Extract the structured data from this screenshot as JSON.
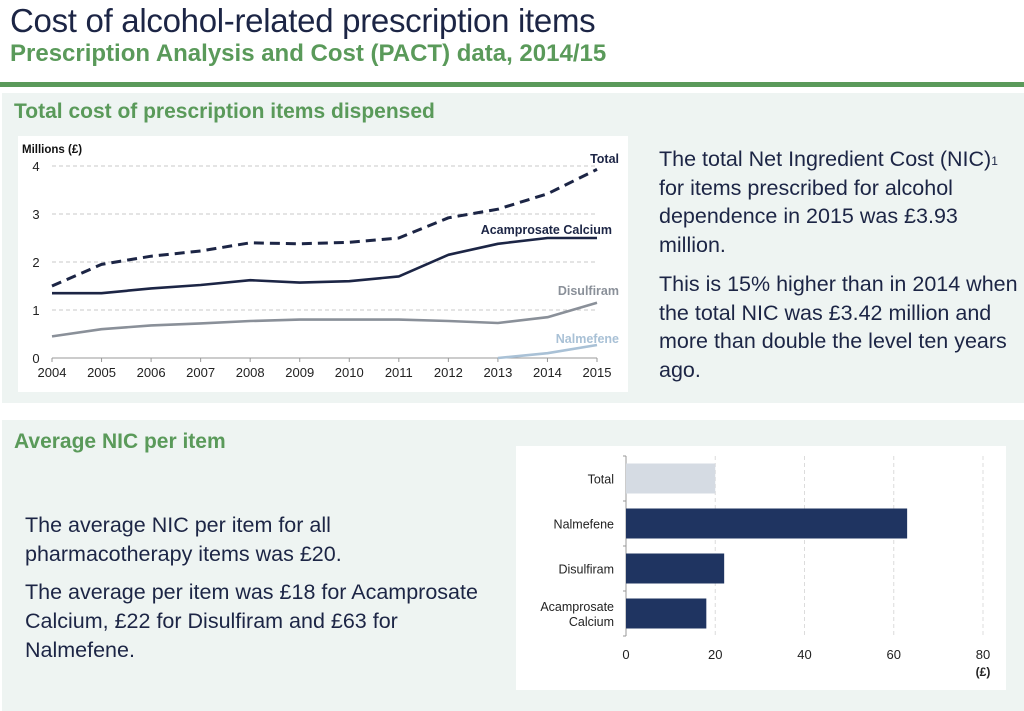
{
  "header": {
    "title": "Cost of alcohol-related prescription items",
    "subtitle": "Prescription Analysis and Cost (PACT) data, 2014/15"
  },
  "top_section": {
    "title": "Total cost of prescription items dispensed",
    "paragraph1_before_sup": "The total Net Ingredient Cost (NIC)",
    "paragraph1_sup": "1",
    "paragraph1_after_sup": " for items prescribed for alcohol dependence in 2015 was £3.93 million.",
    "paragraph2": "This is 15% higher than in 2014 when the total NIC was £3.42 million and more than double the level ten years ago."
  },
  "bottom_section": {
    "title": "Average NIC per item",
    "paragraph1": "The average NIC per item for all pharmacotherapy items was £20.",
    "paragraph2": "The average per item was £18 for Acamprosate Calcium, £22 for Disulfiram and £63 for Nalmefene."
  },
  "colors": {
    "green": "#5a9a5a",
    "navy": "#1c2545",
    "bar_navy": "#1f3461",
    "bar_total": "#d5dbe3",
    "disulfiram": "#8a9099",
    "nalmefene": "#a9c1d6"
  },
  "chart_data": [
    {
      "type": "line",
      "ylabel": "Millions (£)",
      "x": [
        2004,
        2005,
        2006,
        2007,
        2008,
        2009,
        2010,
        2011,
        2012,
        2013,
        2014,
        2015
      ],
      "xticks": [
        "2004",
        "2005",
        "2006",
        "2007",
        "2008",
        "2009",
        "2010",
        "2011",
        "2012",
        "2013",
        "2014",
        "2015"
      ],
      "yticks": [
        "0",
        "1",
        "2",
        "3",
        "4"
      ],
      "ylim": [
        0,
        4
      ],
      "grid": true,
      "series": [
        {
          "name": "Total",
          "style": "dashed",
          "color": "#1c2545",
          "values": [
            1.5,
            1.95,
            2.12,
            2.23,
            2.4,
            2.38,
            2.41,
            2.5,
            2.92,
            3.1,
            3.42,
            3.93
          ]
        },
        {
          "name": "Acamprosate Calcium",
          "style": "solid",
          "color": "#1c2545",
          "values": [
            1.35,
            1.35,
            1.45,
            1.52,
            1.62,
            1.57,
            1.6,
            1.7,
            2.15,
            2.38,
            2.5,
            2.5
          ]
        },
        {
          "name": "Disulfiram",
          "style": "solid",
          "color": "#8a9099",
          "values": [
            0.45,
            0.6,
            0.68,
            0.72,
            0.77,
            0.8,
            0.8,
            0.8,
            0.77,
            0.73,
            0.85,
            1.15
          ]
        },
        {
          "name": "Nalmefene",
          "style": "solid",
          "color": "#a9c1d6",
          "values": [
            null,
            null,
            null,
            null,
            null,
            null,
            null,
            null,
            null,
            0.0,
            0.1,
            0.27
          ]
        }
      ]
    },
    {
      "type": "bar",
      "orientation": "horizontal",
      "categories": [
        "Total",
        "Nalmefene",
        "Disulfiram",
        "Acamprosate Calcium"
      ],
      "category_lines": [
        [
          "Total"
        ],
        [
          "Nalmefene"
        ],
        [
          "Disulfiram"
        ],
        [
          "Acamprosate",
          "Calcium"
        ]
      ],
      "values": [
        20,
        63,
        22,
        18
      ],
      "bar_colors": [
        "#d5dbe3",
        "#1f3461",
        "#1f3461",
        "#1f3461"
      ],
      "xlim": [
        0,
        80
      ],
      "xticks": [
        "0",
        "20",
        "40",
        "60",
        "80"
      ],
      "xlabel": "(£)",
      "grid": true
    }
  ]
}
